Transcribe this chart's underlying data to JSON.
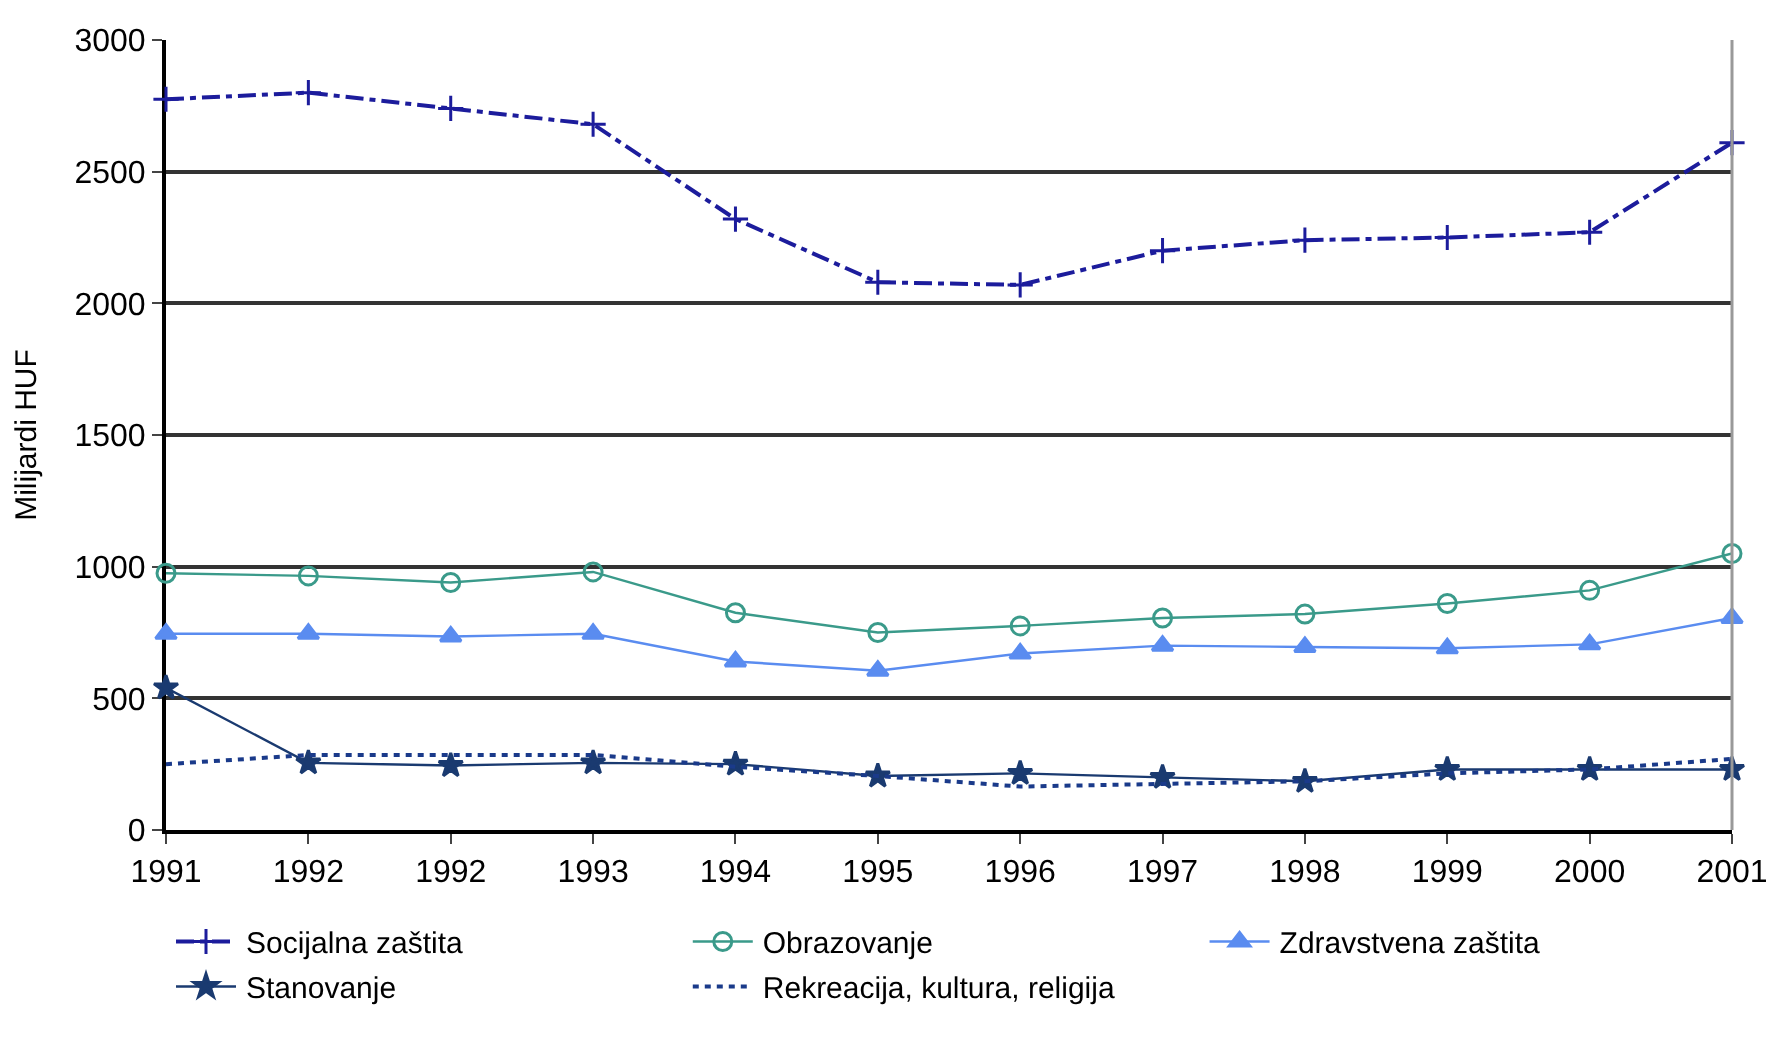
{
  "chart_data": {
    "type": "line",
    "ylabel": "Milijardi HUF",
    "categories": [
      "1991",
      "1992",
      "1992",
      "1993",
      "1994",
      "1995",
      "1996",
      "1997",
      "1998",
      "1999",
      "2000",
      "2001"
    ],
    "series": [
      {
        "name": "Socijalna zaštita",
        "color": "#1c1c9c",
        "marker": "cross",
        "line_style": "dashed",
        "values": [
          2775,
          2800,
          2740,
          2680,
          2320,
          2080,
          2070,
          2200,
          2240,
          2250,
          2270,
          2610
        ]
      },
      {
        "name": "Obrazovanje",
        "color": "#3a9a8a",
        "marker": "circle",
        "line_style": "solid",
        "values": [
          975,
          965,
          940,
          980,
          825,
          750,
          775,
          805,
          820,
          860,
          910,
          1050
        ]
      },
      {
        "name": "Zdravstvena zaštita",
        "color": "#5a8cf0",
        "marker": "triangle",
        "line_style": "solid",
        "values": [
          745,
          745,
          735,
          745,
          640,
          605,
          670,
          700,
          695,
          690,
          705,
          805
        ]
      },
      {
        "name": "Stanovanje",
        "color": "#1a3a70",
        "marker": "star",
        "line_style": "solid",
        "values": [
          540,
          255,
          245,
          255,
          250,
          205,
          215,
          200,
          185,
          230,
          230,
          230
        ]
      },
      {
        "name": "Rekreacija, kultura, religija",
        "color": "#1a3a8a",
        "marker": "none",
        "line_style": "dotted",
        "values": [
          250,
          285,
          285,
          285,
          240,
          205,
          165,
          175,
          185,
          215,
          230,
          270
        ]
      }
    ],
    "ylim": [
      0,
      3000
    ],
    "yticks": [
      0,
      500,
      1000,
      1500,
      2000,
      2500,
      3000
    ],
    "grid": "y",
    "legend": "bottom"
  }
}
